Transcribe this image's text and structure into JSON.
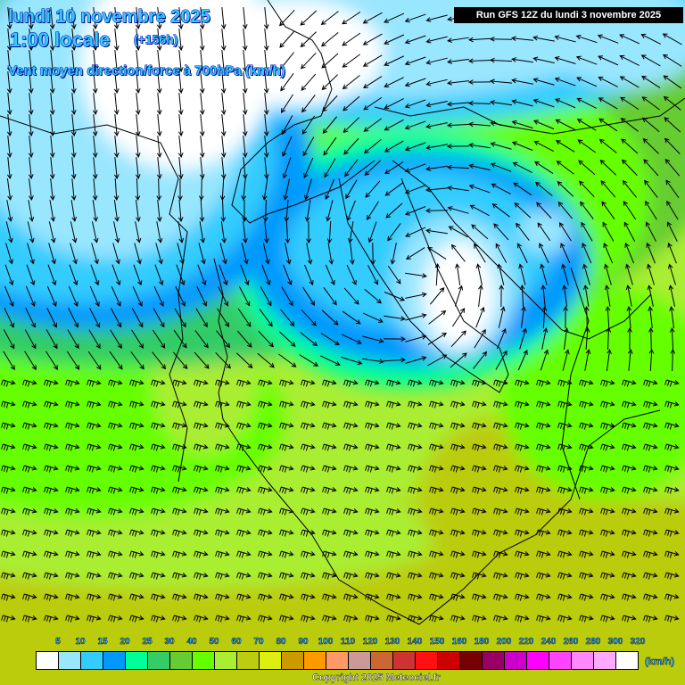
{
  "header": {
    "date": "lundi 10 novembre 2025",
    "time": "1:00 locale",
    "offset": "(+156h)",
    "parameter": "Vent moyen direction/force à 700hPa (km/h)",
    "run": "Run GFS 12Z du lundi 3 novembre 2025"
  },
  "legend": {
    "labels": [
      "5",
      "10",
      "15",
      "20",
      "25",
      "30",
      "40",
      "50",
      "60",
      "70",
      "80",
      "90",
      "100",
      "110",
      "120",
      "130",
      "140",
      "150",
      "160",
      "180",
      "200",
      "220",
      "240",
      "260",
      "280",
      "300",
      "320"
    ],
    "colors": [
      "#ffffff",
      "#99e6ff",
      "#33ccff",
      "#0099ff",
      "#00ff99",
      "#33cc66",
      "#66cc33",
      "#66ff00",
      "#aaee33",
      "#bbcc11",
      "#ddee11",
      "#cc9900",
      "#ff9900",
      "#ff9966",
      "#cc9999",
      "#cc6633",
      "#cc3333",
      "#ff1111",
      "#cc0000",
      "#770000",
      "#990066",
      "#cc00cc",
      "#ff00ff",
      "#ff44ff",
      "#ff88ff",
      "#ffaaff",
      "#ffffff"
    ],
    "unit": "(km/h)"
  },
  "copyright": "Copyright 2025 Meteociel.fr"
}
